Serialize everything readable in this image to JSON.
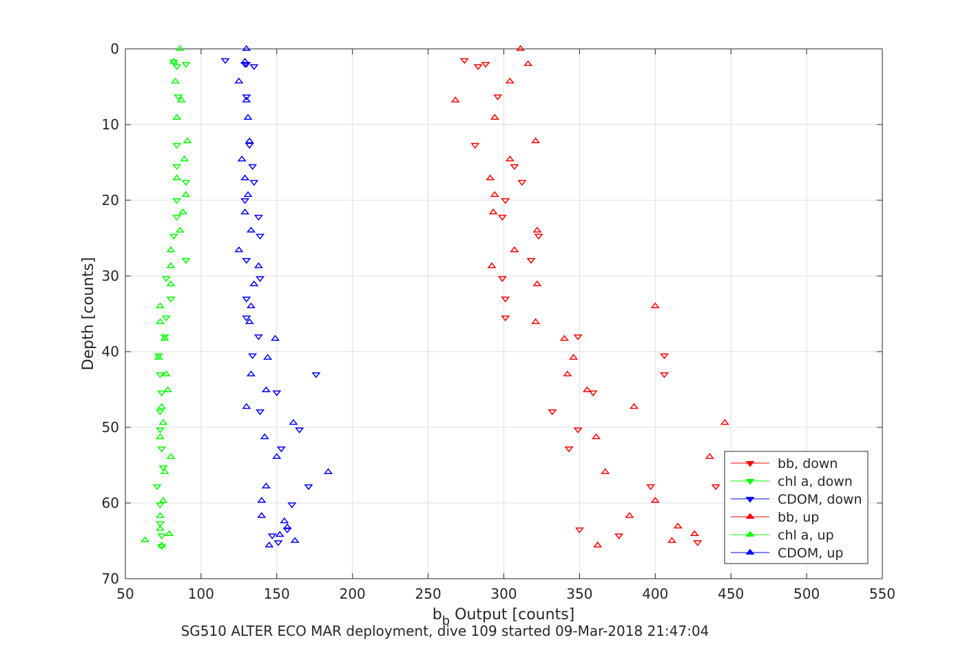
{
  "chart_data": {
    "type": "scatter",
    "title": "",
    "caption": "SG510 ALTER ECO MAR deployment, dive 109 started 09-Mar-2018 21:47:04",
    "xlabel_main": "b",
    "xlabel_sub": "b",
    "xlabel_rest": " Output [counts]",
    "ylabel": "Depth [counts]",
    "xlim": [
      50,
      550
    ],
    "ylim": [
      0,
      70
    ],
    "y_reversed": true,
    "x_ticks": [
      "50",
      "100",
      "150",
      "200",
      "250",
      "300",
      "350",
      "400",
      "450",
      "500",
      "550"
    ],
    "y_ticks": [
      "0",
      "10",
      "20",
      "30",
      "40",
      "50",
      "60",
      "70"
    ],
    "grid": true,
    "legend_position": "bottom-right",
    "series": [
      {
        "name": "bb, down",
        "color": "#ff0000",
        "marker": "triangle-down",
        "points": [
          [
            274,
            1.5
          ],
          [
            283,
            2.3
          ],
          [
            288,
            2.0
          ],
          [
            296,
            6.3
          ],
          [
            281,
            12.7
          ],
          [
            307,
            15.5
          ],
          [
            312,
            17.6
          ],
          [
            301,
            20.0
          ],
          [
            299,
            22.2
          ],
          [
            323,
            24.7
          ],
          [
            318,
            27.9
          ],
          [
            299,
            30.3
          ],
          [
            301,
            33.0
          ],
          [
            301,
            35.5
          ],
          [
            349,
            38.0
          ],
          [
            406,
            40.5
          ],
          [
            406,
            43.0
          ],
          [
            359,
            45.4
          ],
          [
            332,
            47.9
          ],
          [
            349,
            50.3
          ],
          [
            343,
            52.8
          ],
          [
            397,
            57.8
          ],
          [
            440,
            57.8
          ],
          [
            350,
            63.5
          ],
          [
            376,
            64.3
          ],
          [
            428,
            65.2
          ]
        ]
      },
      {
        "name": "chl a, down",
        "color": "#00ff00",
        "marker": "triangle-down",
        "points": [
          [
            82,
            1.7
          ],
          [
            84,
            2.3
          ],
          [
            90,
            2.0
          ],
          [
            85,
            6.3
          ],
          [
            84,
            12.7
          ],
          [
            84,
            15.5
          ],
          [
            90,
            17.6
          ],
          [
            84,
            20.0
          ],
          [
            84,
            22.2
          ],
          [
            82,
            24.7
          ],
          [
            90,
            27.9
          ],
          [
            77,
            30.3
          ],
          [
            80,
            33.0
          ],
          [
            77,
            35.5
          ],
          [
            76,
            38.0
          ],
          [
            72,
            40.5
          ],
          [
            73,
            43.0
          ],
          [
            74,
            45.4
          ],
          [
            73,
            47.9
          ],
          [
            73,
            50.3
          ],
          [
            74,
            52.8
          ],
          [
            75,
            55.3
          ],
          [
            71,
            57.8
          ],
          [
            73,
            60.2
          ],
          [
            73,
            62.7
          ],
          [
            74,
            64.3
          ],
          [
            74,
            65.7
          ]
        ]
      },
      {
        "name": "CDOM, down",
        "color": "#0000ff",
        "marker": "triangle-down",
        "points": [
          [
            116,
            1.5
          ],
          [
            129,
            2.0
          ],
          [
            130,
            2.0
          ],
          [
            135,
            2.3
          ],
          [
            130,
            6.3
          ],
          [
            132,
            12.7
          ],
          [
            134,
            15.5
          ],
          [
            135,
            17.6
          ],
          [
            129,
            20.0
          ],
          [
            138,
            22.2
          ],
          [
            139,
            24.7
          ],
          [
            130,
            27.9
          ],
          [
            139,
            30.3
          ],
          [
            130,
            33.0
          ],
          [
            130,
            35.5
          ],
          [
            138,
            38.0
          ],
          [
            134,
            40.5
          ],
          [
            176,
            43.0
          ],
          [
            150,
            45.4
          ],
          [
            139,
            47.9
          ],
          [
            165,
            50.3
          ],
          [
            153,
            52.8
          ],
          [
            171,
            57.8
          ],
          [
            160,
            60.2
          ],
          [
            157,
            63.5
          ],
          [
            147,
            64.3
          ],
          [
            151,
            65.2
          ]
        ]
      },
      {
        "name": "bb, up",
        "color": "#ff0000",
        "marker": "triangle-up",
        "points": [
          [
            311,
            0.0
          ],
          [
            316,
            2.0
          ],
          [
            304,
            4.3
          ],
          [
            268,
            6.8
          ],
          [
            294,
            9.1
          ],
          [
            321,
            12.2
          ],
          [
            304,
            14.6
          ],
          [
            291,
            17.1
          ],
          [
            294,
            19.3
          ],
          [
            293,
            21.6
          ],
          [
            322,
            24.0
          ],
          [
            307,
            26.6
          ],
          [
            292,
            28.7
          ],
          [
            322,
            31.1
          ],
          [
            321,
            36.1
          ],
          [
            400,
            34.0
          ],
          [
            340,
            38.3
          ],
          [
            346,
            40.8
          ],
          [
            342,
            43.0
          ],
          [
            355,
            45.1
          ],
          [
            386,
            47.3
          ],
          [
            446,
            49.4
          ],
          [
            361,
            51.3
          ],
          [
            436,
            53.9
          ],
          [
            367,
            55.9
          ],
          [
            400,
            59.7
          ],
          [
            383,
            61.7
          ],
          [
            415,
            63.1
          ],
          [
            426,
            64.1
          ],
          [
            411,
            65.0
          ],
          [
            362,
            65.6
          ]
        ]
      },
      {
        "name": "chl a, up",
        "color": "#00ff00",
        "marker": "triangle-up",
        "points": [
          [
            86,
            0.0
          ],
          [
            82,
            1.7
          ],
          [
            83,
            4.3
          ],
          [
            87,
            6.8
          ],
          [
            84,
            9.1
          ],
          [
            91,
            12.2
          ],
          [
            89,
            14.6
          ],
          [
            84,
            17.1
          ],
          [
            90,
            19.3
          ],
          [
            88,
            21.6
          ],
          [
            86,
            24.0
          ],
          [
            80,
            26.6
          ],
          [
            80,
            28.7
          ],
          [
            80,
            31.1
          ],
          [
            73,
            34.0
          ],
          [
            73,
            36.1
          ],
          [
            76,
            38.3
          ],
          [
            72,
            40.8
          ],
          [
            77,
            43.0
          ],
          [
            78,
            45.1
          ],
          [
            74,
            47.3
          ],
          [
            75,
            49.4
          ],
          [
            73,
            51.3
          ],
          [
            80,
            53.9
          ],
          [
            76,
            55.9
          ],
          [
            75,
            59.7
          ],
          [
            73,
            61.7
          ],
          [
            73,
            63.4
          ],
          [
            79,
            64.1
          ],
          [
            63,
            64.9
          ],
          [
            74,
            65.6
          ]
        ]
      },
      {
        "name": "CDOM, up",
        "color": "#0000ff",
        "marker": "triangle-up",
        "points": [
          [
            130,
            0.0
          ],
          [
            129,
            1.7
          ],
          [
            125,
            4.3
          ],
          [
            130,
            6.8
          ],
          [
            131,
            9.1
          ],
          [
            132,
            12.2
          ],
          [
            127,
            14.6
          ],
          [
            129,
            17.1
          ],
          [
            131,
            19.3
          ],
          [
            129,
            21.6
          ],
          [
            133,
            24.0
          ],
          [
            125,
            26.6
          ],
          [
            138,
            28.7
          ],
          [
            135,
            31.1
          ],
          [
            133,
            34.0
          ],
          [
            132,
            36.1
          ],
          [
            149,
            38.3
          ],
          [
            144,
            40.8
          ],
          [
            133,
            43.0
          ],
          [
            143,
            45.1
          ],
          [
            130,
            47.3
          ],
          [
            161,
            49.4
          ],
          [
            142,
            51.3
          ],
          [
            150,
            53.9
          ],
          [
            184,
            55.9
          ],
          [
            143,
            57.8
          ],
          [
            140,
            59.7
          ],
          [
            140,
            61.7
          ],
          [
            155,
            62.4
          ],
          [
            157,
            63.2
          ],
          [
            152,
            64.2
          ],
          [
            162,
            65.0
          ],
          [
            145,
            65.6
          ]
        ]
      }
    ]
  }
}
